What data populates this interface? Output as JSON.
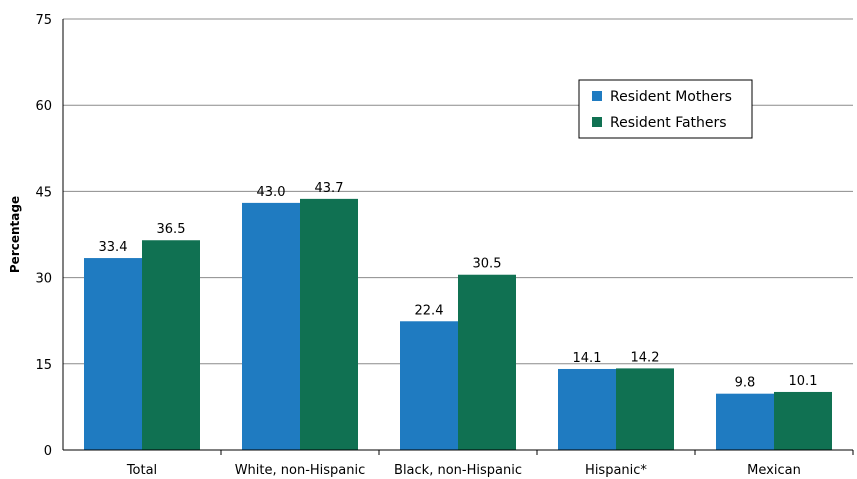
{
  "chart_data": {
    "type": "bar",
    "ylabel": "Percentage",
    "xlabel": "",
    "ylim": [
      0,
      75
    ],
    "yticks": [
      0,
      15,
      30,
      45,
      60,
      75
    ],
    "grid": true,
    "legend_position": "top-right",
    "categories": [
      "Total",
      "White, non-Hispanic",
      "Black, non-Hispanic",
      "Hispanic*",
      "Mexican"
    ],
    "series": [
      {
        "name": "Resident Mothers",
        "color": "#1f7bc1",
        "values": [
          33.4,
          43.0,
          22.4,
          14.1,
          9.8
        ]
      },
      {
        "name": "Resident Fathers",
        "color": "#107152",
        "values": [
          36.5,
          43.7,
          30.5,
          14.2,
          10.1
        ]
      }
    ]
  }
}
